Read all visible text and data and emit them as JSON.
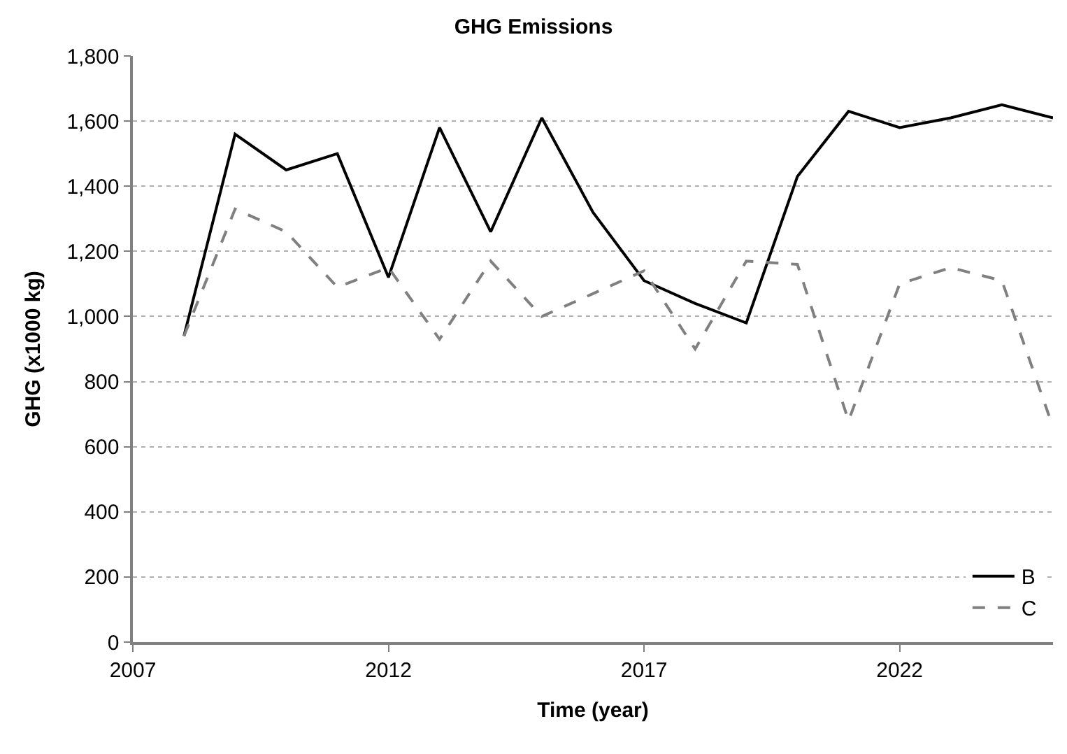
{
  "chart_data": {
    "type": "line",
    "title": "GHG Emissions",
    "xlabel": "Time (year)",
    "ylabel": "GHG (x1000 kg)",
    "x": [
      2008,
      2009,
      2010,
      2011,
      2012,
      2013,
      2014,
      2015,
      2016,
      2017,
      2018,
      2019,
      2020,
      2021,
      2022,
      2023,
      2024,
      2025
    ],
    "series": [
      {
        "name": "B",
        "color": "#000000",
        "line_style": "solid",
        "values": [
          940,
          1560,
          1450,
          1500,
          1120,
          1580,
          1260,
          1610,
          1320,
          1110,
          1040,
          980,
          1430,
          1630,
          1580,
          1610,
          1650,
          1610
        ]
      },
      {
        "name": "C",
        "color": "#808080",
        "line_style": "dashed",
        "values": [
          940,
          1330,
          1260,
          1090,
          1150,
          930,
          1170,
          1000,
          1070,
          1140,
          900,
          1170,
          1160,
          680,
          1100,
          1150,
          1110,
          660
        ]
      }
    ],
    "xlim": [
      2007,
      2025
    ],
    "xticks": [
      2007,
      2012,
      2017,
      2022
    ],
    "ylim": [
      0,
      1800
    ],
    "yticks": [
      0,
      200,
      400,
      600,
      800,
      {
        "value": 1000,
        "label": "1,000"
      },
      {
        "value": 1200,
        "label": "1,200"
      },
      {
        "value": 1400,
        "label": "1,400"
      },
      {
        "value": 1600,
        "label": "1,600"
      },
      {
        "value": 1800,
        "label": "1,800"
      }
    ],
    "grid": "y",
    "legend": "bottom right",
    "marker": "none"
  }
}
